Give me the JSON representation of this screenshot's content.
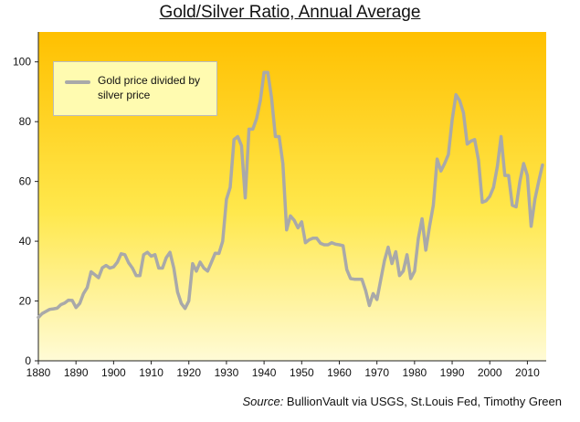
{
  "chart_data": {
    "type": "line",
    "title": "Gold/Silver Ratio, Annual Average",
    "xlim": [
      1880,
      2015
    ],
    "ylim": [
      0,
      110
    ],
    "x_ticks": [
      1880,
      1890,
      1900,
      1910,
      1920,
      1930,
      1940,
      1950,
      1960,
      1970,
      1980,
      1990,
      2000,
      2010
    ],
    "y_ticks": [
      0,
      20,
      40,
      60,
      80,
      100
    ],
    "grid": false,
    "legend_position": "top-left",
    "background": "yellow gradient",
    "series": [
      {
        "name": "Gold price divided by silver price",
        "color": "#a9a9a9",
        "x": [
          1880,
          1881,
          1882,
          1883,
          1884,
          1885,
          1886,
          1887,
          1888,
          1889,
          1890,
          1891,
          1892,
          1893,
          1894,
          1895,
          1896,
          1897,
          1898,
          1899,
          1900,
          1901,
          1902,
          1903,
          1904,
          1905,
          1906,
          1907,
          1908,
          1909,
          1910,
          1911,
          1912,
          1913,
          1914,
          1915,
          1916,
          1917,
          1918,
          1919,
          1920,
          1921,
          1922,
          1923,
          1924,
          1925,
          1926,
          1927,
          1928,
          1929,
          1930,
          1931,
          1932,
          1933,
          1934,
          1935,
          1936,
          1937,
          1938,
          1939,
          1940,
          1941,
          1942,
          1943,
          1944,
          1945,
          1946,
          1947,
          1948,
          1949,
          1950,
          1951,
          1952,
          1953,
          1954,
          1955,
          1956,
          1957,
          1958,
          1959,
          1960,
          1961,
          1962,
          1963,
          1964,
          1965,
          1966,
          1967,
          1968,
          1969,
          1970,
          1971,
          1972,
          1973,
          1974,
          1975,
          1976,
          1977,
          1978,
          1979,
          1980,
          1981,
          1982,
          1983,
          1984,
          1985,
          1986,
          1987,
          1988,
          1989,
          1990,
          1991,
          1992,
          1993,
          1994,
          1995,
          1996,
          1997,
          1998,
          1999,
          2000,
          2001,
          2002,
          2003,
          2004,
          2005,
          2006,
          2007,
          2008,
          2009,
          2010,
          2011,
          2012,
          2013,
          2014
        ],
        "y": [
          14.5,
          15.8,
          16.5,
          17.2,
          17.4,
          17.6,
          18.8,
          19.3,
          20.3,
          20.2,
          17.8,
          19.2,
          22.5,
          24.5,
          29.8,
          28.8,
          27.8,
          31.1,
          31.9,
          31.0,
          31.4,
          33.0,
          35.8,
          35.5,
          32.8,
          31.0,
          28.5,
          28.5,
          35.5,
          36.3,
          35.0,
          35.5,
          31.0,
          31.0,
          34.5,
          36.3,
          31.0,
          23.0,
          19.2,
          17.5,
          20.0,
          32.5,
          30.0,
          33.0,
          31.0,
          30.0,
          33.0,
          36.0,
          35.9,
          40.0,
          54.0,
          58.0,
          74.0,
          75.0,
          72.0,
          54.5,
          77.5,
          77.5,
          81.0,
          87.0,
          96.5,
          96.5,
          88.0,
          75.0,
          75.0,
          66.0,
          43.8,
          48.5,
          47.0,
          44.5,
          46.5,
          39.5,
          40.5,
          41.0,
          41.0,
          39.3,
          38.8,
          38.8,
          39.5,
          39.0,
          38.8,
          38.5,
          30.5,
          27.5,
          27.3,
          27.3,
          27.3,
          23.5,
          18.5,
          22.5,
          20.5,
          27.0,
          33.5,
          38.0,
          32.5,
          36.5,
          28.5,
          30.0,
          35.5,
          27.5,
          30.0,
          41.0,
          47.5,
          37.0,
          45.0,
          52.0,
          67.5,
          63.5,
          66.0,
          69.0,
          80.5,
          89.0,
          87.0,
          83.0,
          72.5,
          73.5,
          74.0,
          67.0,
          53.0,
          53.5,
          55.0,
          58.0,
          65.0,
          75.0,
          62.0,
          62.0,
          52.0,
          51.5,
          60.0,
          66.0,
          62.0,
          45.0,
          54.0,
          60.0,
          65.5
        ]
      }
    ],
    "source_label": "Source:",
    "source_text": " BullionVault via USGS, St.Louis Fed, Timothy Green"
  }
}
